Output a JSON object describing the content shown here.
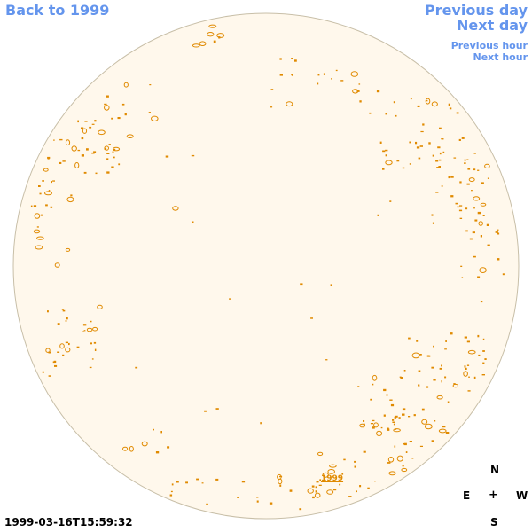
{
  "nav": {
    "back": "Back to 1999",
    "previous_day": "Previous day",
    "next_day": "Next day",
    "previous_hour": "Previous hour",
    "next_hour": "Next hour"
  },
  "compass": {
    "north": "N",
    "east": "E",
    "center": "+",
    "west": "W",
    "south": "S"
  },
  "timestamp": "1999-03-16T15:59:32",
  "year_marker": "1999",
  "colors": {
    "link": "#6495ed",
    "disk_fill": "#fff8ec",
    "disk_edge": "#c8bfa8",
    "contour": "#e08a00",
    "text": "#000000"
  }
}
